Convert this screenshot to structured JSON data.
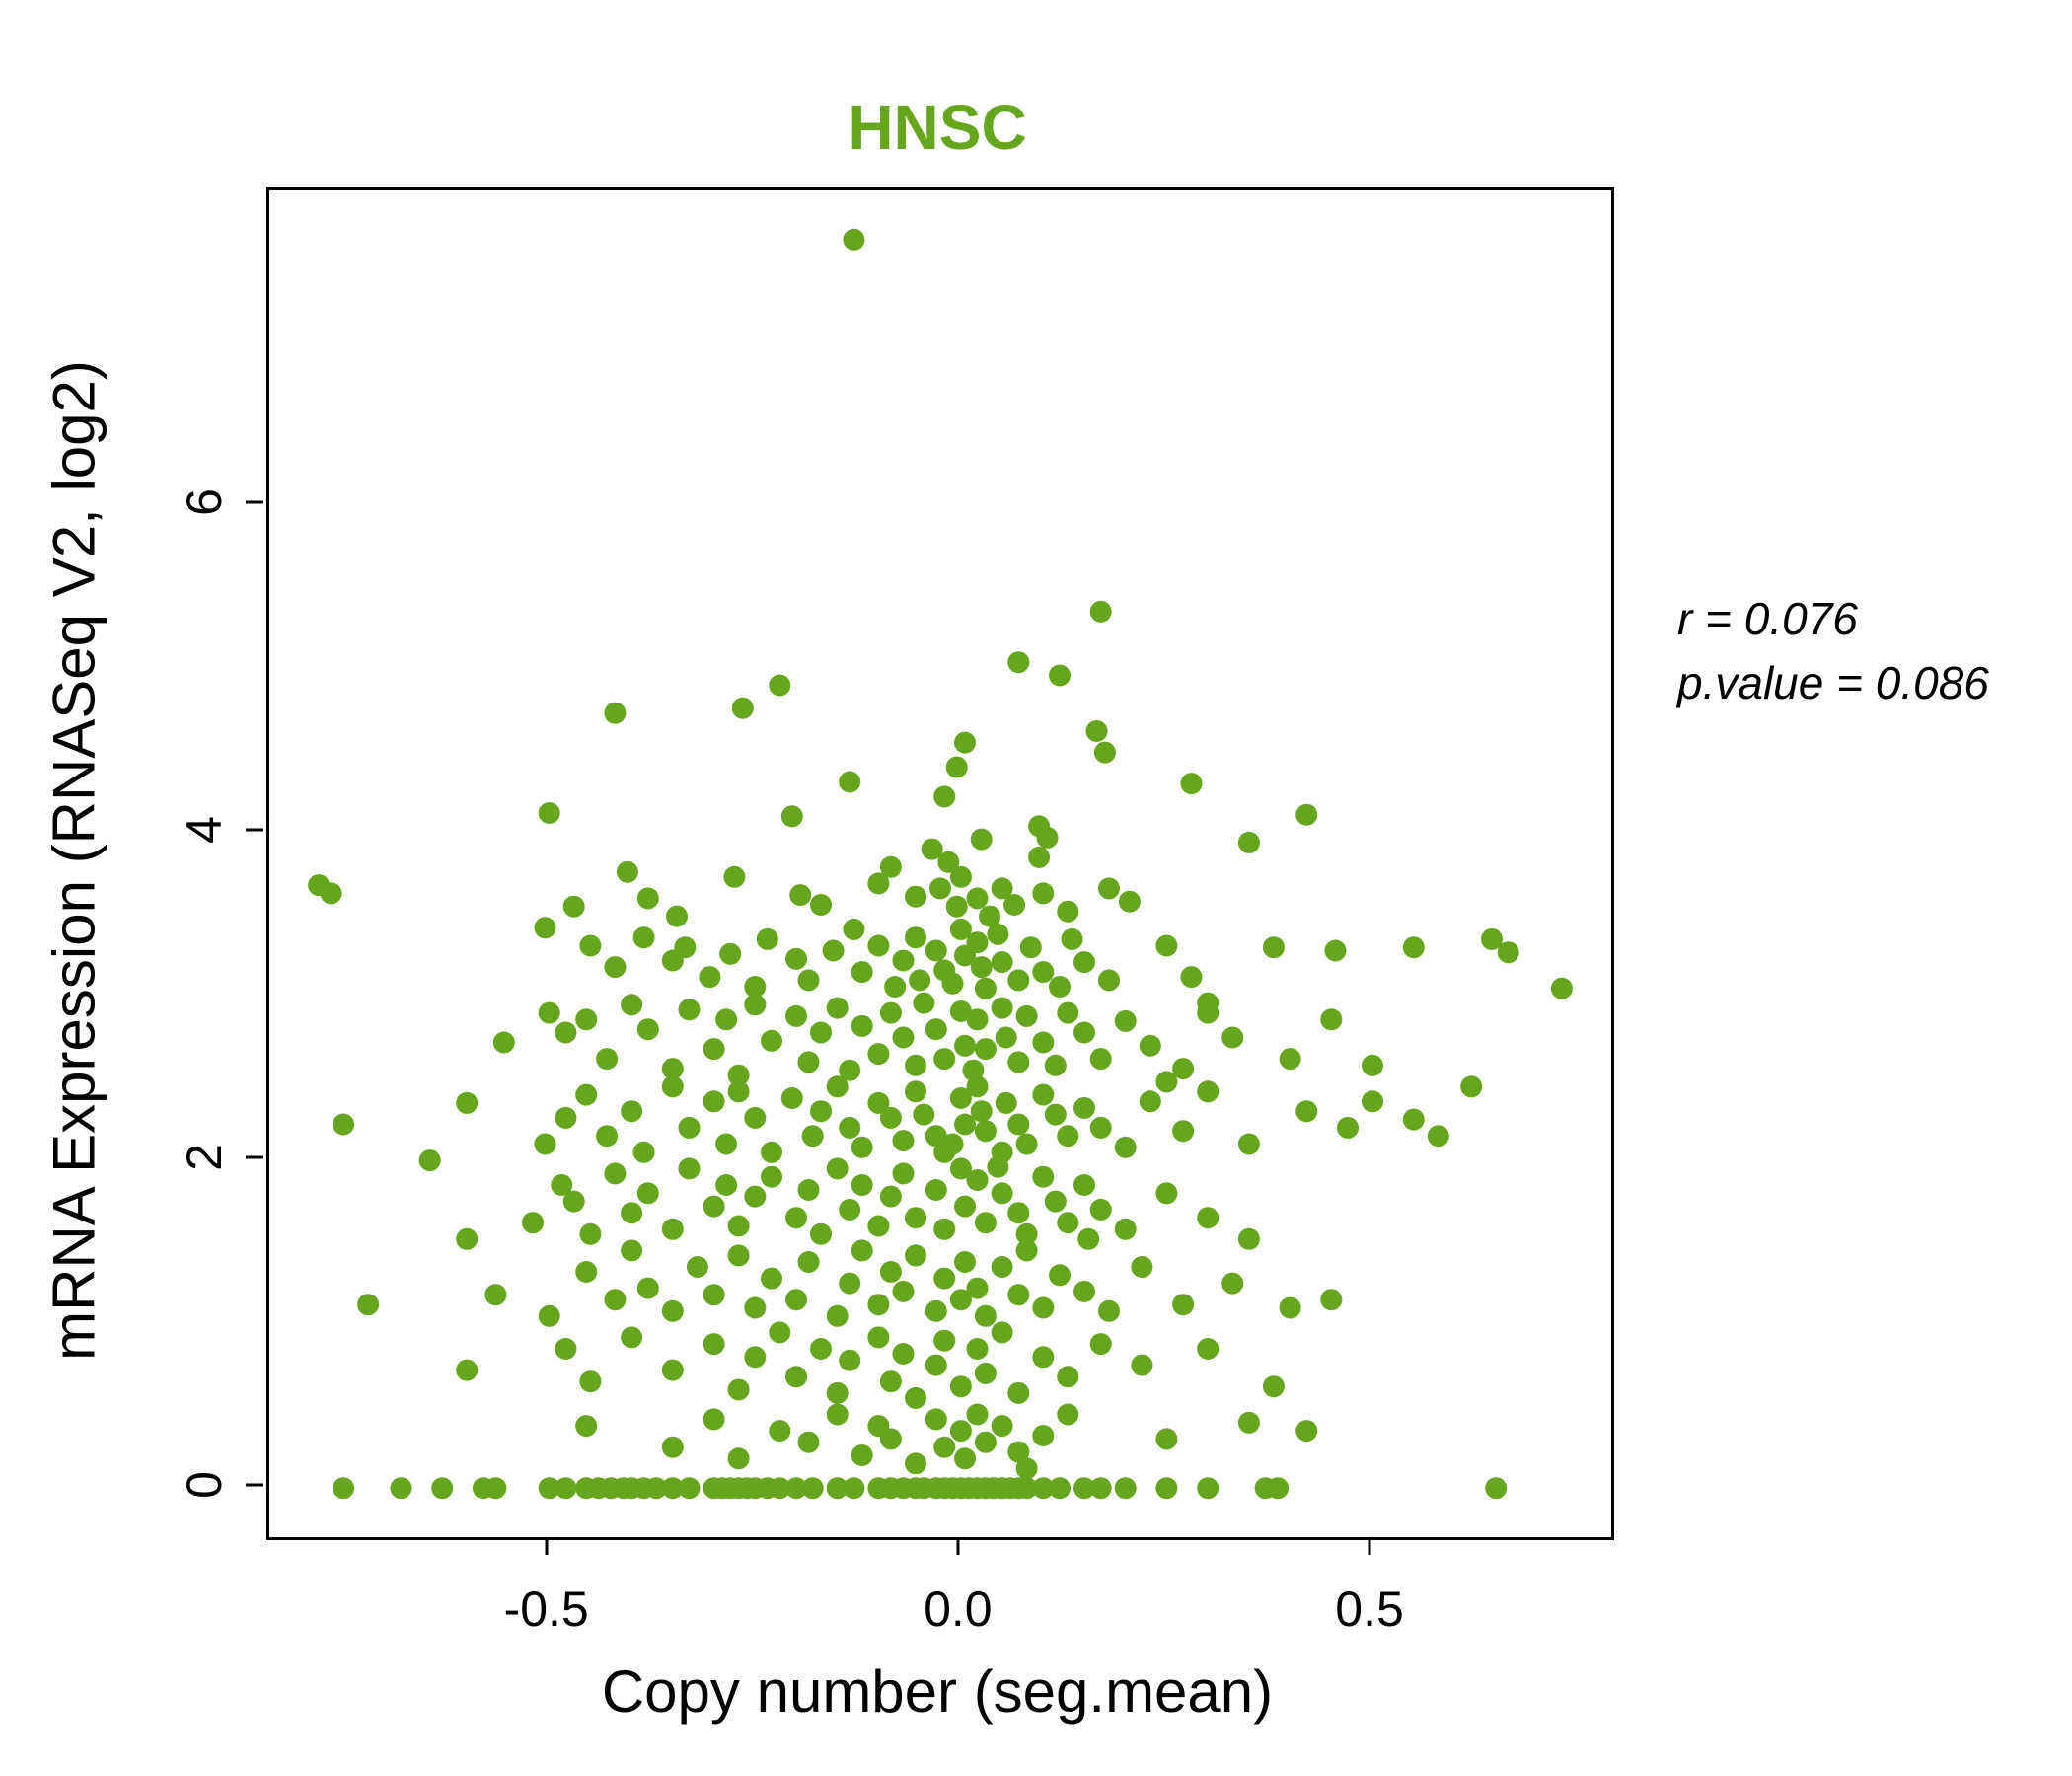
{
  "title": "HNSC",
  "annotation": {
    "line1": "r = 0.076",
    "line2": "p.value = 0.086"
  },
  "colors": {
    "accent": "#66A61E",
    "point": "#66A61E",
    "axis": "#000000",
    "background": "#FFFFFF"
  },
  "chart_data": {
    "type": "scatter",
    "title": "HNSC",
    "xlabel": "Copy number (seg.mean)",
    "ylabel": "mRNA Expression (RNASeq V2, log2)",
    "xlim": [
      -0.84,
      0.79
    ],
    "ylim": [
      -0.3,
      7.92
    ],
    "grid": false,
    "legend": "none",
    "point_color": "#66A61E",
    "stats": {
      "r": 0.076,
      "p_value": 0.086
    },
    "x_ticks": [
      {
        "v": -0.5,
        "label": "-0.5"
      },
      {
        "v": 0.0,
        "label": "0.0"
      },
      {
        "v": 0.5,
        "label": "0.5"
      }
    ],
    "y_ticks": [
      {
        "v": 0,
        "label": "0"
      },
      {
        "v": 2,
        "label": "2"
      },
      {
        "v": 4,
        "label": "4"
      },
      {
        "v": 6,
        "label": "6"
      }
    ],
    "points": [
      [
        -0.13,
        7.62
      ],
      [
        0.17,
        5.35
      ],
      [
        0.07,
        5.04
      ],
      [
        0.12,
        4.96
      ],
      [
        -0.22,
        4.9
      ],
      [
        -0.42,
        4.73
      ],
      [
        -0.265,
        4.76
      ],
      [
        0.005,
        4.55
      ],
      [
        0.165,
        4.62
      ],
      [
        0.175,
        4.49
      ],
      [
        -0.135,
        4.31
      ],
      [
        0.28,
        4.3
      ],
      [
        -0.5,
        4.12
      ],
      [
        -0.205,
        4.1
      ],
      [
        0.42,
        4.11
      ],
      [
        0.095,
        4.04
      ],
      [
        -0.02,
        4.22
      ],
      [
        -0.005,
        4.4
      ],
      [
        0.35,
        3.94
      ],
      [
        0.105,
        3.97
      ],
      [
        -0.035,
        3.9
      ],
      [
        0.025,
        3.96
      ],
      [
        -0.78,
        3.68
      ],
      [
        -0.765,
        3.63
      ],
      [
        -0.47,
        3.55
      ],
      [
        -0.405,
        3.76
      ],
      [
        -0.38,
        3.6
      ],
      [
        -0.345,
        3.49
      ],
      [
        -0.275,
        3.73
      ],
      [
        -0.195,
        3.62
      ],
      [
        -0.17,
        3.56
      ],
      [
        -0.1,
        3.69
      ],
      [
        -0.085,
        3.79
      ],
      [
        -0.055,
        3.61
      ],
      [
        -0.025,
        3.66
      ],
      [
        0.0,
        3.73
      ],
      [
        -0.005,
        3.55
      ],
      [
        0.02,
        3.6
      ],
      [
        0.035,
        3.49
      ],
      [
        0.05,
        3.66
      ],
      [
        0.065,
        3.56
      ],
      [
        0.1,
        3.63
      ],
      [
        0.13,
        3.52
      ],
      [
        0.18,
        3.66
      ],
      [
        0.205,
        3.58
      ],
      [
        0.095,
        3.85
      ],
      [
        -0.015,
        3.82
      ],
      [
        -0.505,
        3.42
      ],
      [
        -0.45,
        3.31
      ],
      [
        -0.42,
        3.18
      ],
      [
        -0.385,
        3.36
      ],
      [
        -0.35,
        3.22
      ],
      [
        -0.335,
        3.3
      ],
      [
        -0.305,
        3.12
      ],
      [
        -0.28,
        3.26
      ],
      [
        -0.25,
        3.06
      ],
      [
        -0.235,
        3.35
      ],
      [
        -0.2,
        3.23
      ],
      [
        -0.185,
        3.1
      ],
      [
        -0.155,
        3.28
      ],
      [
        -0.13,
        3.41
      ],
      [
        -0.12,
        3.15
      ],
      [
        -0.1,
        3.31
      ],
      [
        -0.08,
        3.06
      ],
      [
        -0.07,
        3.22
      ],
      [
        -0.055,
        3.36
      ],
      [
        -0.05,
        3.1
      ],
      [
        -0.03,
        3.28
      ],
      [
        -0.02,
        3.16
      ],
      [
        0.0,
        3.41
      ],
      [
        0.005,
        3.25
      ],
      [
        -0.01,
        3.08
      ],
      [
        0.02,
        3.33
      ],
      [
        0.025,
        3.18
      ],
      [
        0.03,
        3.05
      ],
      [
        0.045,
        3.38
      ],
      [
        0.05,
        3.21
      ],
      [
        0.07,
        3.1
      ],
      [
        0.085,
        3.3
      ],
      [
        0.1,
        3.15
      ],
      [
        0.12,
        3.06
      ],
      [
        0.135,
        3.35
      ],
      [
        0.15,
        3.21
      ],
      [
        0.18,
        3.1
      ],
      [
        0.28,
        3.12
      ],
      [
        0.3,
        2.96
      ],
      [
        0.38,
        3.3
      ],
      [
        0.455,
        3.28
      ],
      [
        0.55,
        3.3
      ],
      [
        0.645,
        3.35
      ],
      [
        0.665,
        3.27
      ],
      [
        0.73,
        3.05
      ],
      [
        0.25,
        3.31
      ],
      [
        -0.555,
        2.72
      ],
      [
        -0.5,
        2.9
      ],
      [
        -0.48,
        2.78
      ],
      [
        -0.455,
        2.86
      ],
      [
        -0.43,
        2.62
      ],
      [
        -0.4,
        2.95
      ],
      [
        -0.38,
        2.8
      ],
      [
        -0.35,
        2.56
      ],
      [
        -0.33,
        2.92
      ],
      [
        -0.3,
        2.68
      ],
      [
        -0.285,
        2.86
      ],
      [
        -0.27,
        2.52
      ],
      [
        -0.25,
        2.95
      ],
      [
        -0.23,
        2.73
      ],
      [
        -0.2,
        2.88
      ],
      [
        -0.185,
        2.6
      ],
      [
        -0.17,
        2.78
      ],
      [
        -0.15,
        2.93
      ],
      [
        -0.135,
        2.55
      ],
      [
        -0.12,
        2.82
      ],
      [
        -0.1,
        2.65
      ],
      [
        -0.085,
        2.9
      ],
      [
        -0.07,
        2.75
      ],
      [
        -0.055,
        2.58
      ],
      [
        -0.045,
        2.96
      ],
      [
        -0.03,
        2.8
      ],
      [
        -0.02,
        2.62
      ],
      [
        0.0,
        2.91
      ],
      [
        0.005,
        2.7
      ],
      [
        0.015,
        2.55
      ],
      [
        0.02,
        2.86
      ],
      [
        0.03,
        2.68
      ],
      [
        0.05,
        2.93
      ],
      [
        0.055,
        2.75
      ],
      [
        0.07,
        2.6
      ],
      [
        0.08,
        2.88
      ],
      [
        0.1,
        2.72
      ],
      [
        0.115,
        2.58
      ],
      [
        0.13,
        2.9
      ],
      [
        0.15,
        2.78
      ],
      [
        0.17,
        2.62
      ],
      [
        0.2,
        2.85
      ],
      [
        0.23,
        2.7
      ],
      [
        0.27,
        2.56
      ],
      [
        0.3,
        2.9
      ],
      [
        0.33,
        2.75
      ],
      [
        0.4,
        2.62
      ],
      [
        0.45,
        2.86
      ],
      [
        0.5,
        2.58
      ],
      [
        0.62,
        2.45
      ],
      [
        -0.75,
        2.22
      ],
      [
        -0.6,
        2.35
      ],
      [
        -0.505,
        2.1
      ],
      [
        -0.48,
        2.26
      ],
      [
        -0.455,
        2.4
      ],
      [
        -0.43,
        2.15
      ],
      [
        -0.4,
        2.3
      ],
      [
        -0.385,
        2.05
      ],
      [
        -0.35,
        2.45
      ],
      [
        -0.33,
        2.2
      ],
      [
        -0.3,
        2.36
      ],
      [
        -0.285,
        2.1
      ],
      [
        -0.27,
        2.42
      ],
      [
        -0.25,
        2.26
      ],
      [
        -0.23,
        2.05
      ],
      [
        -0.205,
        2.38
      ],
      [
        -0.18,
        2.15
      ],
      [
        -0.17,
        2.3
      ],
      [
        -0.15,
        2.45
      ],
      [
        -0.135,
        2.2
      ],
      [
        -0.12,
        2.08
      ],
      [
        -0.1,
        2.35
      ],
      [
        -0.085,
        2.26
      ],
      [
        -0.07,
        2.12
      ],
      [
        -0.055,
        2.42
      ],
      [
        -0.045,
        2.28
      ],
      [
        -0.03,
        2.15
      ],
      [
        -0.02,
        2.05
      ],
      [
        0.0,
        2.38
      ],
      [
        0.005,
        2.22
      ],
      [
        -0.01,
        2.1
      ],
      [
        0.02,
        2.45
      ],
      [
        0.025,
        2.3
      ],
      [
        0.03,
        2.18
      ],
      [
        0.05,
        2.05
      ],
      [
        0.055,
        2.35
      ],
      [
        0.07,
        2.22
      ],
      [
        0.08,
        2.1
      ],
      [
        0.1,
        2.4
      ],
      [
        0.115,
        2.28
      ],
      [
        0.13,
        2.15
      ],
      [
        0.15,
        2.32
      ],
      [
        0.17,
        2.2
      ],
      [
        0.2,
        2.08
      ],
      [
        0.23,
        2.36
      ],
      [
        0.27,
        2.18
      ],
      [
        0.3,
        2.42
      ],
      [
        0.35,
        2.1
      ],
      [
        0.42,
        2.3
      ],
      [
        0.47,
        2.2
      ],
      [
        0.5,
        2.36
      ],
      [
        0.55,
        2.25
      ],
      [
        0.58,
        2.15
      ],
      [
        0.25,
        2.48
      ],
      [
        -0.645,
        2.0
      ],
      [
        -0.52,
        1.62
      ],
      [
        -0.485,
        1.85
      ],
      [
        -0.47,
        1.75
      ],
      [
        -0.45,
        1.55
      ],
      [
        -0.42,
        1.92
      ],
      [
        -0.4,
        1.68
      ],
      [
        -0.38,
        1.8
      ],
      [
        -0.35,
        1.58
      ],
      [
        -0.33,
        1.95
      ],
      [
        -0.3,
        1.72
      ],
      [
        -0.285,
        1.85
      ],
      [
        -0.27,
        1.6
      ],
      [
        -0.25,
        1.78
      ],
      [
        -0.23,
        1.9
      ],
      [
        -0.2,
        1.65
      ],
      [
        -0.185,
        1.82
      ],
      [
        -0.17,
        1.55
      ],
      [
        -0.15,
        1.95
      ],
      [
        -0.135,
        1.7
      ],
      [
        -0.12,
        1.85
      ],
      [
        -0.1,
        1.6
      ],
      [
        -0.085,
        1.78
      ],
      [
        -0.07,
        1.92
      ],
      [
        -0.055,
        1.65
      ],
      [
        -0.03,
        1.82
      ],
      [
        -0.02,
        1.58
      ],
      [
        0.0,
        1.95
      ],
      [
        0.005,
        1.72
      ],
      [
        0.02,
        1.88
      ],
      [
        0.03,
        1.62
      ],
      [
        0.05,
        1.8
      ],
      [
        0.07,
        1.68
      ],
      [
        0.08,
        1.55
      ],
      [
        0.1,
        1.9
      ],
      [
        0.115,
        1.75
      ],
      [
        0.13,
        1.62
      ],
      [
        0.15,
        1.85
      ],
      [
        0.17,
        1.7
      ],
      [
        0.2,
        1.58
      ],
      [
        0.25,
        1.8
      ],
      [
        0.3,
        1.65
      ],
      [
        0.35,
        1.52
      ],
      [
        0.155,
        1.52
      ],
      [
        0.045,
        1.96
      ],
      [
        -0.6,
        1.52
      ],
      [
        -0.72,
        1.12
      ],
      [
        -0.565,
        1.18
      ],
      [
        -0.5,
        1.05
      ],
      [
        -0.455,
        1.32
      ],
      [
        -0.42,
        1.15
      ],
      [
        -0.4,
        1.45
      ],
      [
        -0.38,
        1.22
      ],
      [
        -0.35,
        1.08
      ],
      [
        -0.32,
        1.35
      ],
      [
        -0.3,
        1.18
      ],
      [
        -0.27,
        1.42
      ],
      [
        -0.25,
        1.1
      ],
      [
        -0.23,
        1.28
      ],
      [
        -0.2,
        1.15
      ],
      [
        -0.185,
        1.38
      ],
      [
        -0.15,
        1.05
      ],
      [
        -0.135,
        1.25
      ],
      [
        -0.12,
        1.45
      ],
      [
        -0.1,
        1.12
      ],
      [
        -0.085,
        1.32
      ],
      [
        -0.07,
        1.2
      ],
      [
        -0.055,
        1.42
      ],
      [
        -0.03,
        1.08
      ],
      [
        -0.02,
        1.28
      ],
      [
        0.0,
        1.15
      ],
      [
        0.005,
        1.38
      ],
      [
        0.02,
        1.22
      ],
      [
        0.03,
        1.05
      ],
      [
        0.05,
        1.35
      ],
      [
        0.07,
        1.18
      ],
      [
        0.08,
        1.45
      ],
      [
        0.1,
        1.1
      ],
      [
        0.12,
        1.3
      ],
      [
        0.15,
        1.2
      ],
      [
        0.18,
        1.08
      ],
      [
        0.22,
        1.35
      ],
      [
        0.27,
        1.12
      ],
      [
        0.33,
        1.25
      ],
      [
        0.4,
        1.1
      ],
      [
        0.45,
        1.15
      ],
      [
        -0.48,
        0.85
      ],
      [
        -0.45,
        0.65
      ],
      [
        -0.4,
        0.92
      ],
      [
        -0.35,
        0.72
      ],
      [
        -0.3,
        0.88
      ],
      [
        -0.27,
        0.6
      ],
      [
        -0.25,
        0.8
      ],
      [
        -0.22,
        0.95
      ],
      [
        -0.2,
        0.68
      ],
      [
        -0.17,
        0.85
      ],
      [
        -0.15,
        0.58
      ],
      [
        -0.135,
        0.78
      ],
      [
        -0.1,
        0.92
      ],
      [
        -0.085,
        0.65
      ],
      [
        -0.07,
        0.82
      ],
      [
        -0.055,
        0.55
      ],
      [
        -0.03,
        0.75
      ],
      [
        -0.02,
        0.9
      ],
      [
        0.0,
        0.62
      ],
      [
        0.02,
        0.85
      ],
      [
        0.03,
        0.7
      ],
      [
        0.05,
        0.95
      ],
      [
        0.07,
        0.58
      ],
      [
        0.1,
        0.8
      ],
      [
        0.13,
        0.68
      ],
      [
        0.17,
        0.88
      ],
      [
        0.22,
        0.75
      ],
      [
        0.3,
        0.85
      ],
      [
        0.38,
        0.62
      ],
      [
        -0.6,
        0.72
      ],
      [
        -0.455,
        0.38
      ],
      [
        -0.35,
        0.25
      ],
      [
        -0.3,
        0.42
      ],
      [
        -0.27,
        0.18
      ],
      [
        -0.22,
        0.35
      ],
      [
        -0.185,
        0.28
      ],
      [
        -0.15,
        0.45
      ],
      [
        -0.12,
        0.2
      ],
      [
        -0.1,
        0.38
      ],
      [
        -0.085,
        0.3
      ],
      [
        -0.055,
        0.15
      ],
      [
        -0.03,
        0.42
      ],
      [
        -0.02,
        0.25
      ],
      [
        0.0,
        0.35
      ],
      [
        0.005,
        0.18
      ],
      [
        0.02,
        0.45
      ],
      [
        0.03,
        0.28
      ],
      [
        0.05,
        0.38
      ],
      [
        0.07,
        0.22
      ],
      [
        0.1,
        0.32
      ],
      [
        0.13,
        0.45
      ],
      [
        0.25,
        0.3
      ],
      [
        0.35,
        0.4
      ],
      [
        0.42,
        0.35
      ],
      [
        0.08,
        0.12
      ],
      [
        -0.75,
        0
      ],
      [
        -0.68,
        0
      ],
      [
        -0.63,
        0
      ],
      [
        -0.58,
        0
      ],
      [
        -0.565,
        0
      ],
      [
        -0.5,
        0
      ],
      [
        -0.48,
        0
      ],
      [
        -0.455,
        0
      ],
      [
        -0.44,
        0
      ],
      [
        -0.425,
        0
      ],
      [
        -0.41,
        0
      ],
      [
        -0.4,
        0
      ],
      [
        -0.385,
        0
      ],
      [
        -0.37,
        0
      ],
      [
        -0.35,
        0
      ],
      [
        -0.33,
        0
      ],
      [
        -0.3,
        0
      ],
      [
        -0.29,
        0
      ],
      [
        -0.28,
        0
      ],
      [
        -0.27,
        0
      ],
      [
        -0.26,
        0
      ],
      [
        -0.25,
        0
      ],
      [
        -0.235,
        0
      ],
      [
        -0.22,
        0
      ],
      [
        -0.2,
        0
      ],
      [
        -0.18,
        0
      ],
      [
        -0.15,
        0
      ],
      [
        -0.13,
        0
      ],
      [
        -0.1,
        0
      ],
      [
        -0.085,
        0
      ],
      [
        -0.07,
        0
      ],
      [
        -0.055,
        0
      ],
      [
        -0.045,
        0
      ],
      [
        -0.03,
        0
      ],
      [
        -0.02,
        0
      ],
      [
        -0.01,
        0
      ],
      [
        0.0,
        0
      ],
      [
        0.01,
        0
      ],
      [
        0.02,
        0
      ],
      [
        0.03,
        0
      ],
      [
        0.04,
        0
      ],
      [
        0.05,
        0
      ],
      [
        0.06,
        0
      ],
      [
        0.07,
        0
      ],
      [
        0.08,
        0
      ],
      [
        0.1,
        0
      ],
      [
        0.12,
        0
      ],
      [
        0.15,
        0
      ],
      [
        0.17,
        0
      ],
      [
        0.2,
        0
      ],
      [
        0.25,
        0
      ],
      [
        0.3,
        0
      ],
      [
        0.37,
        0
      ],
      [
        0.385,
        0
      ],
      [
        0.65,
        0
      ]
    ]
  }
}
